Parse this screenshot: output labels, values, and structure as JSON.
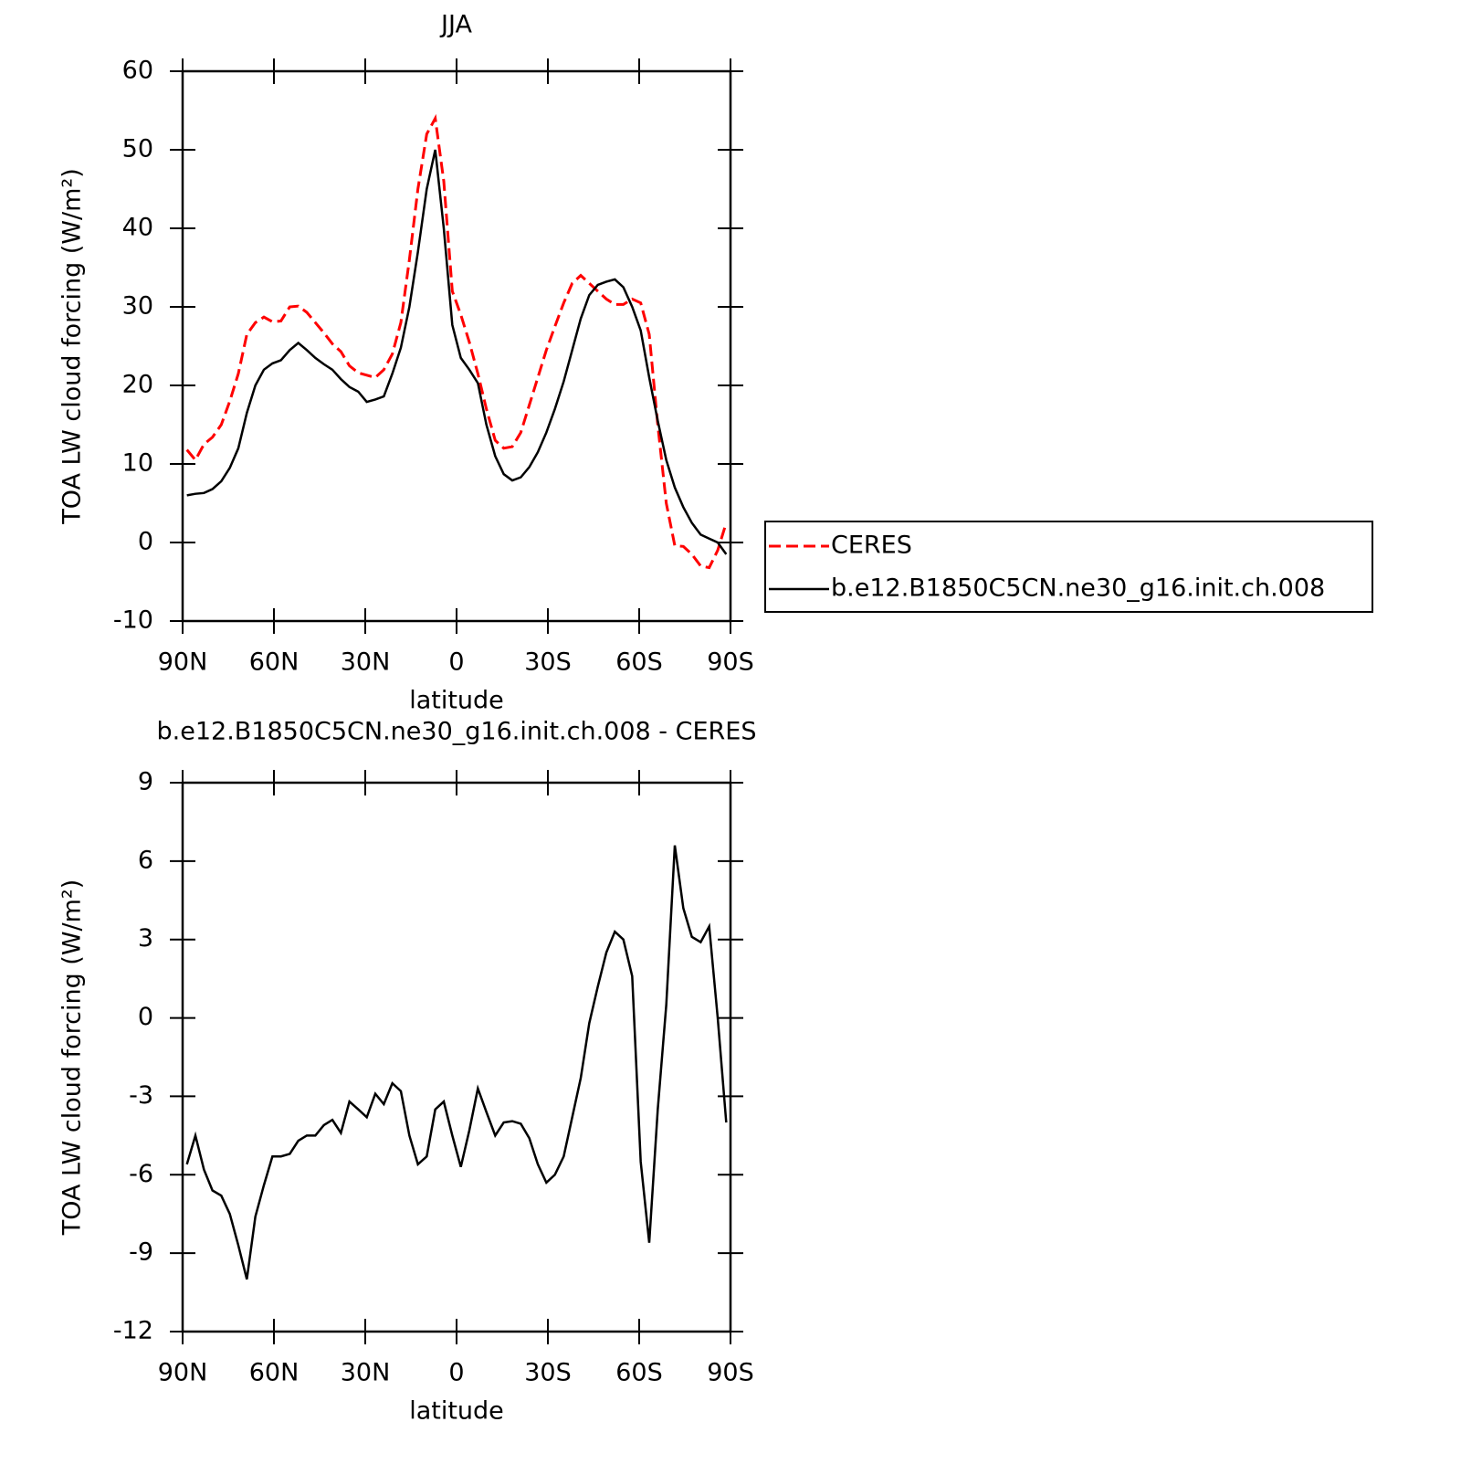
{
  "chart_data": [
    {
      "type": "line",
      "title": "JJA",
      "xlabel": "latitude",
      "ylabel": "TOA LW cloud forcing (W/m²)",
      "x": [
        88.6,
        85.8,
        83.0,
        80.2,
        77.3,
        74.5,
        71.7,
        68.9,
        66.1,
        63.3,
        60.5,
        57.7,
        54.8,
        52.0,
        49.2,
        46.4,
        43.6,
        40.8,
        38.0,
        35.2,
        32.3,
        29.5,
        26.7,
        23.9,
        21.1,
        18.3,
        15.5,
        12.7,
        9.8,
        7.0,
        4.2,
        1.4,
        -1.4,
        -4.2,
        -7.0,
        -9.8,
        -12.7,
        -15.5,
        -18.3,
        -21.1,
        -23.9,
        -26.7,
        -29.5,
        -32.3,
        -35.2,
        -38.0,
        -40.8,
        -43.6,
        -46.4,
        -49.2,
        -52.0,
        -54.8,
        -57.7,
        -60.5,
        -63.3,
        -66.1,
        -68.9,
        -71.7,
        -74.5,
        -77.3,
        -80.2,
        -83.0,
        -85.8,
        -88.6
      ],
      "series": [
        {
          "name": "CERES",
          "color": "#ff0000",
          "dashed": true,
          "values": [
            11.8,
            10.5,
            12.5,
            13.4,
            15,
            18,
            21.5,
            26.5,
            28,
            28.7,
            28.1,
            28.2,
            30,
            30.1,
            29.3,
            28,
            26.7,
            25.3,
            24.3,
            22.5,
            21.6,
            21.3,
            21,
            22,
            24,
            28,
            36,
            45,
            52,
            54,
            46,
            32,
            29,
            25.5,
            21.5,
            17,
            13,
            12,
            12.2,
            14,
            17.5,
            21,
            24.5,
            27.5,
            30.5,
            33,
            34,
            33,
            32,
            31,
            30.3,
            30.3,
            31,
            30.5,
            26.5,
            15,
            5,
            -0.4,
            -0.5,
            -1.5,
            -3,
            -3.2,
            -1,
            2.5
          ]
        },
        {
          "name": "b.e12.B1850C5CN.ne30_g16.init.ch.008",
          "color": "#000000",
          "dashed": false,
          "values": [
            6.0,
            6.2,
            6.3,
            6.8,
            7.8,
            9.5,
            12,
            16.5,
            20,
            22,
            22.8,
            23.2,
            24.5,
            25.4,
            24.5,
            23.5,
            22.7,
            22,
            20.8,
            19.8,
            19.2,
            17.9,
            18.2,
            18.6,
            21.5,
            24.8,
            30,
            37,
            45,
            50,
            40,
            27.7,
            23.5,
            22,
            20.3,
            15,
            11,
            8.7,
            7.9,
            8.3,
            9.6,
            11.5,
            14,
            17,
            20.5,
            24.5,
            28.5,
            31.5,
            32.8,
            33.2,
            33.5,
            32.5,
            30,
            27,
            21,
            15.5,
            10.5,
            7,
            4.5,
            2.5,
            1,
            0.5,
            0,
            -1.5
          ]
        }
      ],
      "xlim": [
        90,
        -90
      ],
      "xticks": [
        {
          "value": 90,
          "label": "90N"
        },
        {
          "value": 60,
          "label": "60N"
        },
        {
          "value": 30,
          "label": "30N"
        },
        0,
        {
          "value": -30,
          "label": "30S"
        },
        {
          "value": -60,
          "label": "60S"
        },
        {
          "value": -90,
          "label": "90S"
        }
      ],
      "ylim": [
        -10,
        60
      ],
      "yticks": [
        -10,
        0,
        10,
        20,
        30,
        40,
        50,
        60
      ],
      "legend": "right"
    },
    {
      "type": "line",
      "title": "b.e12.B1850C5CN.ne30_g16.init.ch.008 - CERES",
      "xlabel": "latitude",
      "ylabel": "TOA LW cloud forcing (W/m²)",
      "x": [
        88.6,
        85.8,
        83.0,
        80.2,
        77.3,
        74.5,
        71.7,
        68.9,
        66.1,
        63.3,
        60.5,
        57.7,
        54.8,
        52.0,
        49.2,
        46.4,
        43.6,
        40.8,
        38.0,
        35.2,
        32.3,
        29.5,
        26.7,
        23.9,
        21.1,
        18.3,
        15.5,
        12.7,
        9.8,
        7.0,
        4.2,
        1.4,
        -1.4,
        -4.2,
        -7.0,
        -9.8,
        -12.7,
        -15.5,
        -18.3,
        -21.1,
        -23.9,
        -26.7,
        -29.5,
        -32.3,
        -35.2,
        -38.0,
        -40.8,
        -43.6,
        -46.4,
        -49.2,
        -52.0,
        -54.8,
        -57.7,
        -60.5,
        -63.3,
        -66.1,
        -68.9,
        -71.7,
        -74.5,
        -77.3,
        -80.2,
        -83.0,
        -85.8,
        -88.6
      ],
      "color": "#000000",
      "values": [
        -5.6,
        -4.5,
        -5.8,
        -6.6,
        -6.8,
        -7.5,
        -8.7,
        -10,
        -7.6,
        -6.4,
        -5.3,
        -5.3,
        -5.2,
        -4.7,
        -4.5,
        -4.5,
        -4.1,
        -3.9,
        -4.4,
        -3.2,
        -3.5,
        -3.8,
        -2.9,
        -3.3,
        -2.5,
        -2.8,
        -4.5,
        -5.6,
        -5.3,
        -3.5,
        -3.2,
        -4.5,
        -5.7,
        -4.3,
        -2.7,
        -3.6,
        -4.5,
        -4.0,
        -3.95,
        -4.05,
        -4.6,
        -5.6,
        -6.3,
        -6.0,
        -5.3,
        -3.8,
        -2.3,
        -0.2,
        1.2,
        2.5,
        3.3,
        3.0,
        1.6,
        -5.5,
        -8.6,
        -3.5,
        0.5,
        6.6,
        4.2,
        3.1,
        2.9,
        3.5,
        0,
        -4
      ],
      "xlim": [
        90,
        -90
      ],
      "xticks": [
        {
          "value": 90,
          "label": "90N"
        },
        {
          "value": 60,
          "label": "60N"
        },
        {
          "value": 30,
          "label": "30N"
        },
        0,
        {
          "value": -30,
          "label": "30S"
        },
        {
          "value": -60,
          "label": "60S"
        },
        {
          "value": -90,
          "label": "90S"
        }
      ],
      "ylim": [
        -12,
        9
      ],
      "yticks": [
        -12,
        -9,
        -6,
        -3,
        0,
        3,
        6,
        9
      ]
    }
  ]
}
